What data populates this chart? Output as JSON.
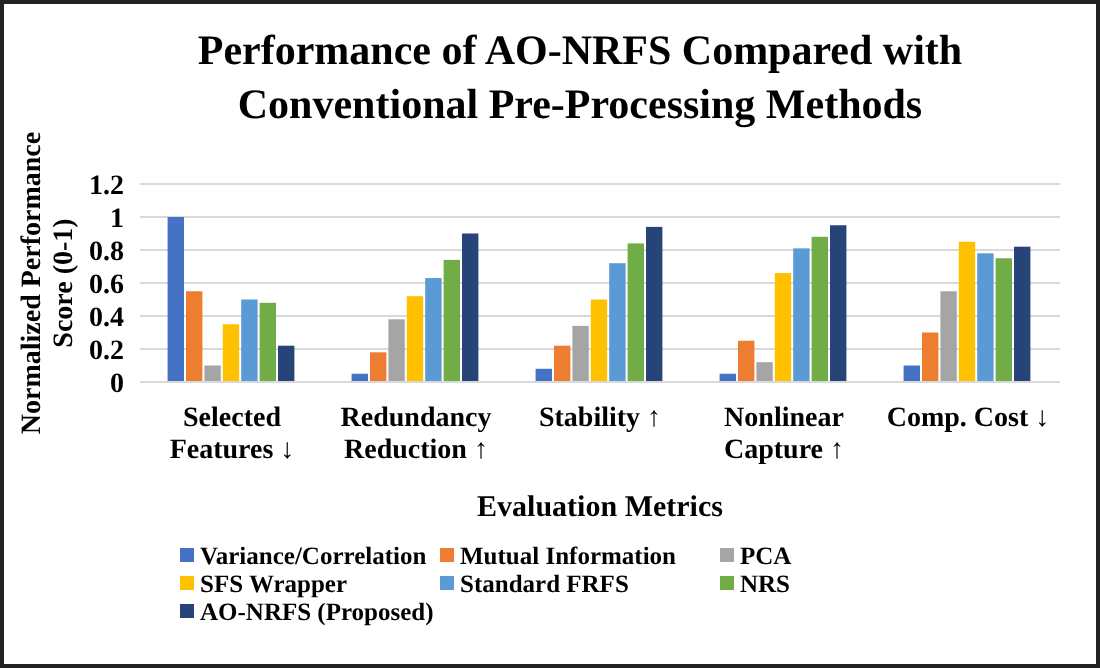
{
  "chart_data": {
    "type": "bar",
    "title": "Performance of AO-NRFS Compared with Conventional Pre-Processing Methods",
    "xlabel": "Evaluation Metrics",
    "ylabel": "Normalized Performance Score (0-1)",
    "categories": [
      "Selected Features ↓",
      "Redundancy Reduction ↑",
      "Stability ↑",
      "Nonlinear Capture ↑",
      "Comp. Cost ↓"
    ],
    "series": [
      {
        "name": "Variance/Correlation",
        "color": "#4472c4",
        "values": [
          1,
          0.05,
          0.08,
          0.05,
          0.1
        ]
      },
      {
        "name": "Mutual Information",
        "color": "#ed7d31",
        "values": [
          0.55,
          0.18,
          0.22,
          0.25,
          0.3
        ]
      },
      {
        "name": "PCA",
        "color": "#a5a5a5",
        "values": [
          0.1,
          0.38,
          0.34,
          0.12,
          0.55
        ]
      },
      {
        "name": "SFS Wrapper",
        "color": "#ffc000",
        "values": [
          0.35,
          0.52,
          0.5,
          0.66,
          0.85
        ]
      },
      {
        "name": "Standard FRFS",
        "color": "#5b9bd5",
        "values": [
          0.5,
          0.63,
          0.72,
          0.81,
          0.78
        ]
      },
      {
        "name": "NRS",
        "color": "#70ad47",
        "values": [
          0.48,
          0.74,
          0.84,
          0.88,
          0.75
        ]
      },
      {
        "name": "AO-NRFS (Proposed)",
        "color": "#264478",
        "values": [
          0.22,
          0.9,
          0.94,
          0.95,
          0.82
        ]
      }
    ],
    "ylim": [
      0,
      1.2
    ],
    "yticks": [
      0,
      0.2,
      0.4,
      0.6,
      0.8,
      1,
      1.2
    ],
    "grid": "y",
    "legend": "bottom"
  }
}
